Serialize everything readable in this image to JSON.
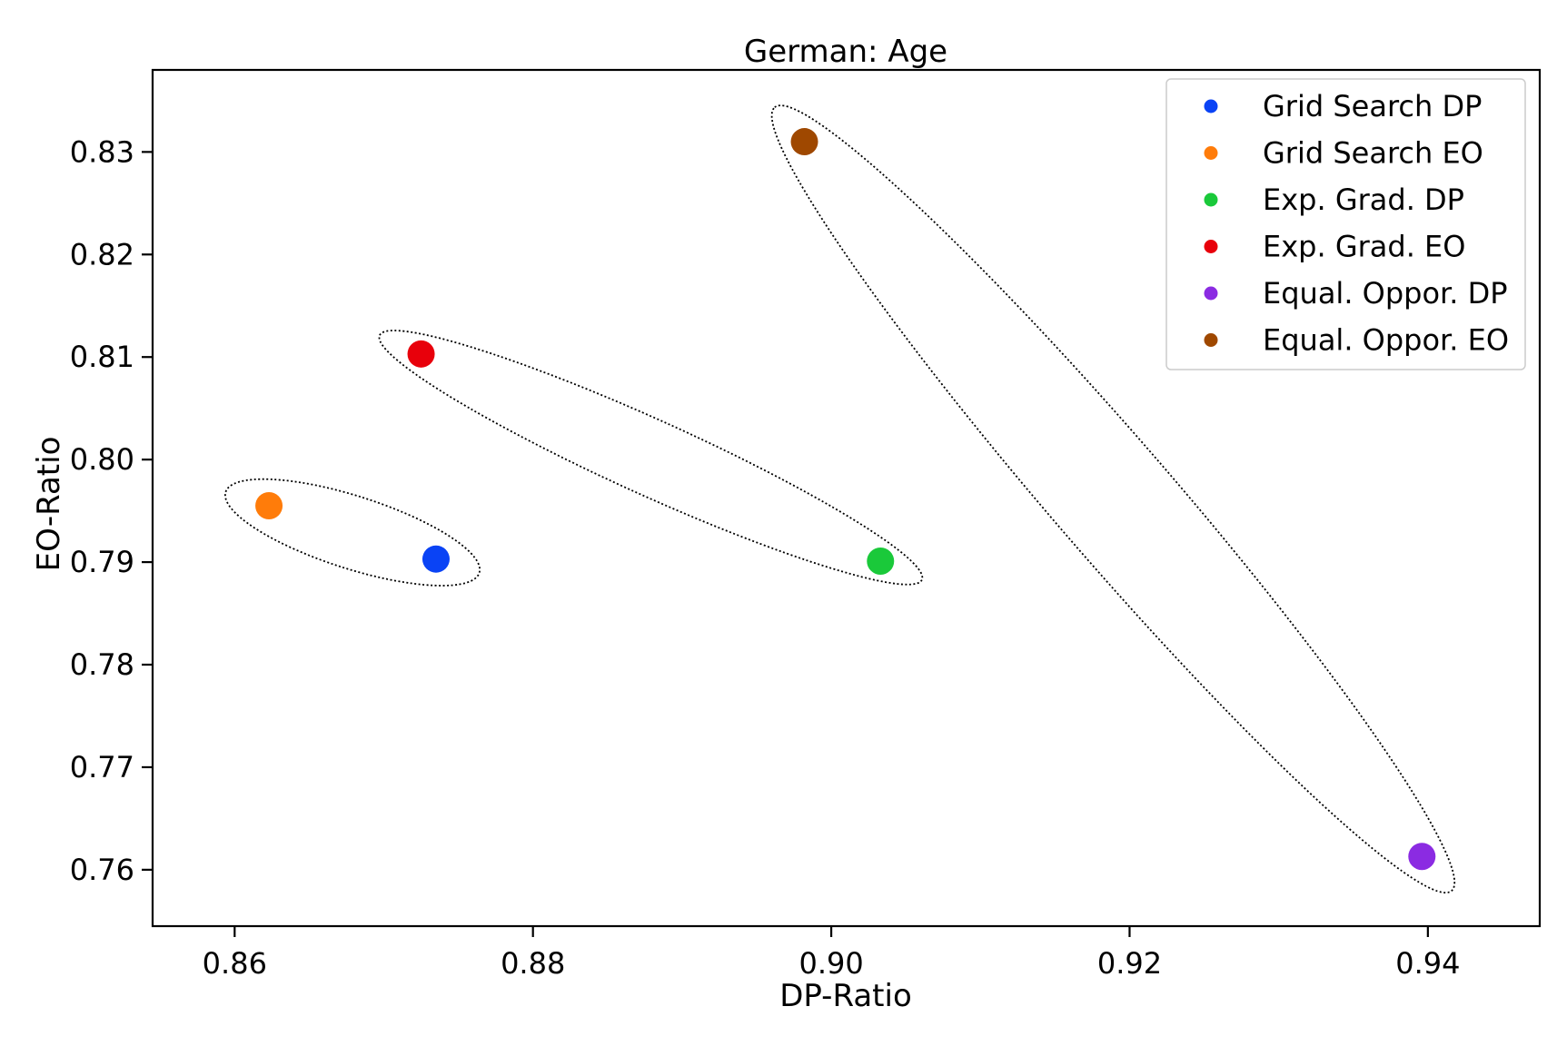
{
  "chart_data": {
    "type": "scatter",
    "title": "German: Age",
    "xlabel": "DP-Ratio",
    "ylabel": "EO-Ratio",
    "xlim": [
      0.8545,
      0.9475
    ],
    "ylim": [
      0.7545,
      0.838
    ],
    "xticks": [
      0.86,
      0.88,
      0.9,
      0.92,
      0.94
    ],
    "xtick_labels": [
      "0.86",
      "0.88",
      "0.90",
      "0.92",
      "0.94"
    ],
    "yticks": [
      0.76,
      0.77,
      0.78,
      0.79,
      0.8,
      0.81,
      0.82,
      0.83
    ],
    "ytick_labels": [
      "0.76",
      "0.77",
      "0.78",
      "0.79",
      "0.80",
      "0.81",
      "0.82",
      "0.83"
    ],
    "grid": false,
    "legend_position": "top-right",
    "series": [
      {
        "name": "Grid Search DP",
        "color": "#0a43f5",
        "x": [
          0.8735
        ],
        "y": [
          0.7903
        ]
      },
      {
        "name": "Grid Search EO",
        "color": "#ff7c0a",
        "x": [
          0.8623
        ],
        "y": [
          0.7955
        ]
      },
      {
        "name": "Exp. Grad. DP",
        "color": "#1ac93a",
        "x": [
          0.9033
        ],
        "y": [
          0.7901
        ]
      },
      {
        "name": "Exp. Grad. EO",
        "color": "#e8000b",
        "x": [
          0.8725
        ],
        "y": [
          0.8103
        ]
      },
      {
        "name": "Equal. Oppor. DP",
        "color": "#8b2be2",
        "x": [
          0.9396
        ],
        "y": [
          0.7613
        ]
      },
      {
        "name": "Equal. Oppor. EO",
        "color": "#9f4800",
        "x": [
          0.8982
        ],
        "y": [
          0.831
        ]
      }
    ],
    "annotations": [
      {
        "shape": "dotted-ellipse",
        "encloses": [
          "Grid Search DP",
          "Grid Search EO"
        ]
      },
      {
        "shape": "dotted-ellipse",
        "encloses": [
          "Exp. Grad. DP",
          "Exp. Grad. EO"
        ]
      },
      {
        "shape": "dotted-ellipse",
        "encloses": [
          "Equal. Oppor. DP",
          "Equal. Oppor. EO"
        ]
      }
    ]
  }
}
